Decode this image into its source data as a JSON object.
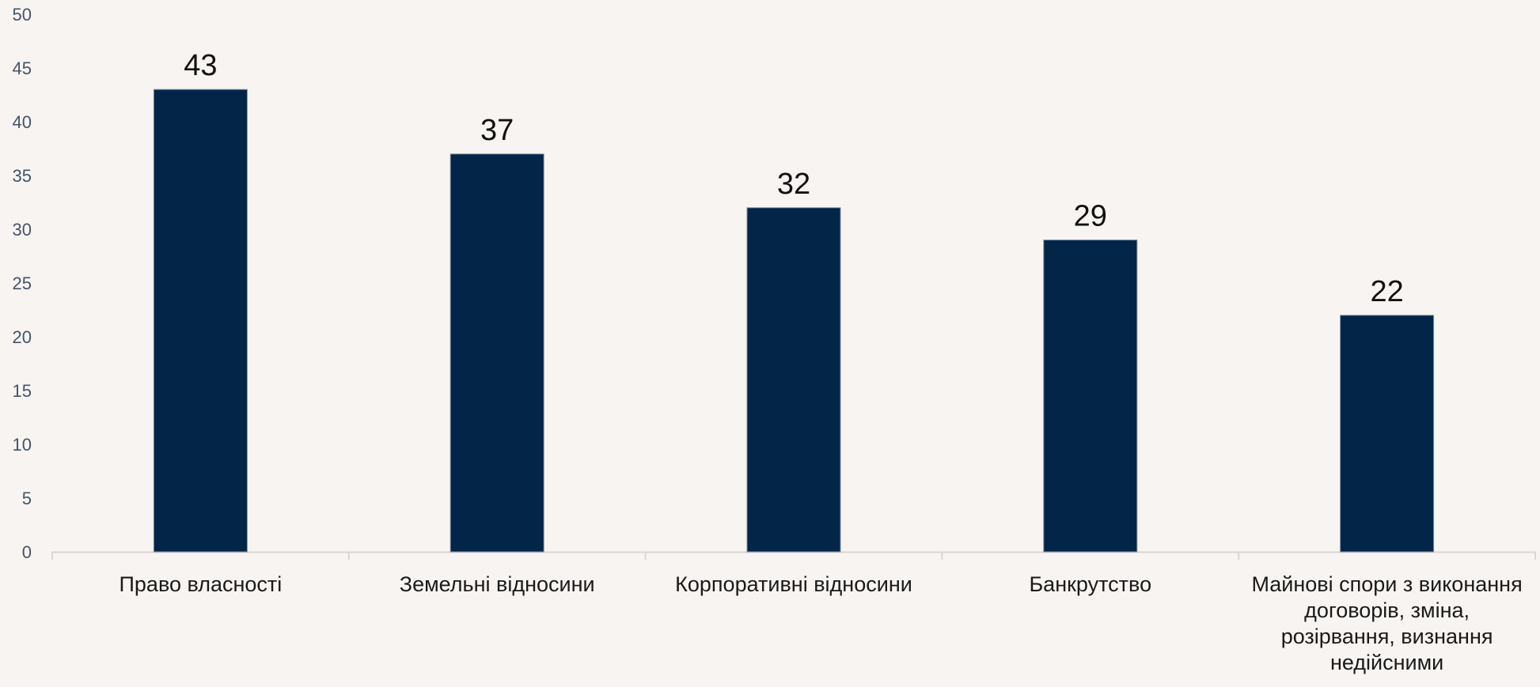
{
  "chart_data": {
    "type": "bar",
    "title": "",
    "xlabel": "",
    "ylabel": "",
    "categories": [
      "Право власності",
      "Земельні відносини",
      "Корпоративні відносини",
      "Банкрутство",
      "Майнові спори з виконання договорів, зміна, розірвання, визнання недійсними"
    ],
    "category_lines": [
      [
        "Право власності"
      ],
      [
        "Земельні відносини"
      ],
      [
        "Корпоративні відносини"
      ],
      [
        "Банкрутство"
      ],
      [
        "Майнові спори з виконання",
        "договорів, зміна,",
        "розірвання, визнання",
        "недійсними"
      ]
    ],
    "values": [
      43,
      37,
      32,
      29,
      22
    ],
    "ylim": [
      0,
      50
    ],
    "yticks": [
      0,
      5,
      10,
      15,
      20,
      25,
      30,
      35,
      40,
      45,
      50
    ],
    "grid": false,
    "legend": "none",
    "bar_color": "#022548",
    "axis_color": "#d9d6d3",
    "background": "#f8f4f1"
  }
}
